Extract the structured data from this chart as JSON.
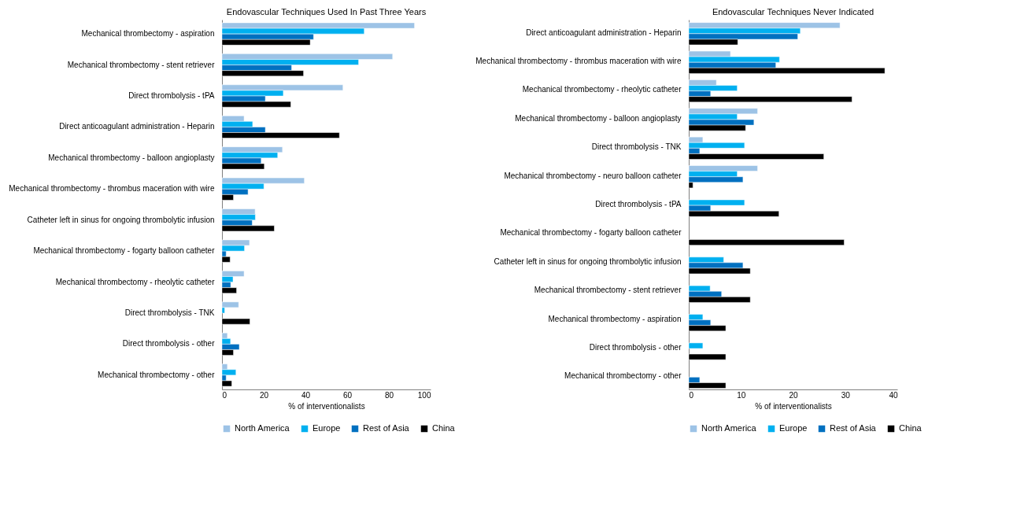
{
  "chart_data": [
    {
      "type": "bar",
      "orientation": "horizontal",
      "title": "Endovascular Techniques Used In Past Three Years",
      "xlabel": "% of interventionalists",
      "categories": [
        "Mechanical thrombectomy - aspiration",
        "Mechanical thrombectomy - stent retriever",
        "Direct thrombolysis - tPA",
        "Direct anticoagulant administration - Heparin",
        "Mechanical thrombectomy - balloon angioplasty",
        "Mechanical thrombectomy - thrombus maceration with wire",
        "Catheter left in sinus for ongoing thrombolytic infusion",
        "Mechanical thrombectomy - fogarty balloon catheter",
        "Mechanical thrombectomy - rheolytic catheter",
        "Direct thrombolysis - TNK",
        "Direct thrombolysis - other",
        "Mechanical thrombectomy - other"
      ],
      "series": [
        {
          "name": "North America",
          "color": "#9dc3e6",
          "values": [
            92.3,
            81.8,
            58.0,
            10.6,
            29.0,
            39.5,
            15.9,
            13.2,
            10.6,
            8.0,
            2.6,
            2.6
          ]
        },
        {
          "name": "Europe",
          "color": "#00b0f0",
          "values": [
            68.2,
            65.5,
            29.4,
            14.7,
            26.7,
            20.1,
            16.0,
            10.8,
            5.3,
            1.3,
            4.1,
            6.7
          ]
        },
        {
          "name": "Rest of Asia",
          "color": "#0070c0",
          "values": [
            43.9,
            33.4,
            20.8,
            20.8,
            18.8,
            12.5,
            14.5,
            2.0,
            4.2,
            null,
            8.3,
            2.0
          ]
        },
        {
          "name": "China",
          "color": "#000000",
          "values": [
            42.3,
            39.1,
            33.0,
            56.3,
            20.3,
            5.5,
            25.1,
            3.9,
            7.0,
            13.4,
            5.5,
            4.7
          ]
        }
      ],
      "xlim": [
        0,
        100
      ],
      "xticks": [
        0,
        20,
        40,
        60,
        80,
        100
      ],
      "grid": false,
      "legend": "bottom"
    },
    {
      "type": "bar",
      "orientation": "horizontal",
      "title": "Endovascular Techniques Never Indicated",
      "xlabel": "% of interventionalists",
      "categories": [
        "Direct anticoagulant administration - Heparin",
        "Mechanical thrombectomy - thrombus maceration with wire",
        "Mechanical thrombectomy - rheolytic catheter",
        "Mechanical thrombectomy - balloon angioplasty",
        "Direct thrombolysis - TNK",
        "Mechanical thrombectomy - neuro balloon catheter",
        "Direct thrombolysis - tPA",
        "Mechanical thrombectomy - fogarty balloon catheter",
        "Catheter left in sinus for ongoing thrombolytic infusion",
        "Mechanical thrombectomy - stent retriever",
        "Mechanical thrombectomy - aspiration",
        "Direct thrombolysis - other",
        "Mechanical thrombectomy - other"
      ],
      "series": [
        {
          "name": "North America",
          "color": "#9dc3e6",
          "values": [
            29.0,
            8.0,
            5.3,
            13.2,
            2.7,
            13.2,
            null,
            null,
            null,
            null,
            null,
            null,
            null
          ]
        },
        {
          "name": "Europe",
          "color": "#00b0f0",
          "values": [
            21.4,
            17.4,
            9.3,
            9.3,
            10.7,
            9.3,
            10.7,
            null,
            6.7,
            4.1,
            2.7,
            2.7,
            null
          ]
        },
        {
          "name": "Rest of Asia",
          "color": "#0070c0",
          "values": [
            20.9,
            16.7,
            4.2,
            12.5,
            2.1,
            10.4,
            4.2,
            null,
            10.4,
            6.3,
            4.2,
            null,
            2.1
          ]
        },
        {
          "name": "China",
          "color": "#000000",
          "values": [
            9.4,
            37.6,
            31.3,
            10.9,
            25.9,
            0.8,
            17.3,
            29.8,
            11.8,
            11.8,
            7.1,
            7.1,
            7.1
          ]
        }
      ],
      "xlim": [
        0,
        40
      ],
      "xticks": [
        0,
        10,
        20,
        30,
        40
      ],
      "grid": false,
      "legend": "bottom"
    }
  ]
}
